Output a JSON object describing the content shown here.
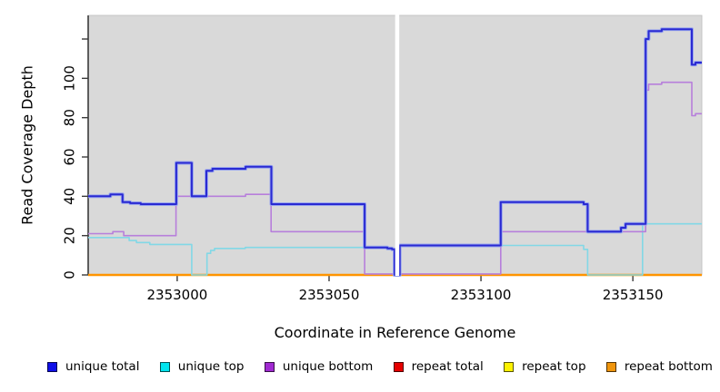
{
  "chart_data": {
    "type": "line",
    "subtype": "step-post",
    "title": "",
    "xlabel": "Coordinate in Reference Genome",
    "ylabel": "Read Coverage Depth",
    "xlim": [
      2352970.7,
      2353172.7
    ],
    "ylim": [
      0,
      132
    ],
    "grid": false,
    "panel_bg": "#d9d9d9",
    "panel_border": "#c4c4c4",
    "axis_color": "#3a3a3a",
    "gap_region": {
      "from": 2353071.75,
      "to": 2353073.1,
      "color": "#ffffff"
    },
    "xticks": [
      {
        "v": 2353000,
        "label": "2353000"
      },
      {
        "v": 2353050,
        "label": "2353050"
      },
      {
        "v": 2353100,
        "label": "2353100"
      },
      {
        "v": 2353150,
        "label": "2353150"
      }
    ],
    "yticks": [
      {
        "v": 0,
        "label": "0"
      },
      {
        "v": 20,
        "label": "20"
      },
      {
        "v": 40,
        "label": "40"
      },
      {
        "v": 60,
        "label": "60"
      },
      {
        "v": 80,
        "label": "80"
      },
      {
        "v": 100,
        "label": "100"
      },
      {
        "v": 120,
        "label": ""
      }
    ],
    "series": [
      {
        "name": "repeat total",
        "color": "#d40000",
        "width": 1.2,
        "points": [
          [
            2352970.7,
            0
          ]
        ]
      },
      {
        "name": "repeat top",
        "color": "#f5e800",
        "width": 1.2,
        "points": [
          [
            2352970.7,
            0
          ]
        ]
      },
      {
        "name": "repeat bottom",
        "color": "#ff9400",
        "width": 2.4,
        "points": [
          [
            2352970.7,
            0
          ]
        ]
      },
      {
        "name": "unique top",
        "color": "#82d8e6",
        "width": 1.6,
        "points": [
          [
            2352970.7,
            19
          ],
          [
            2352984.2,
            17.5
          ],
          [
            2352986.6,
            16.5
          ],
          [
            2352991,
            15.5
          ],
          [
            2353004.8,
            0
          ],
          [
            2353009.8,
            11
          ],
          [
            2353011,
            12.5
          ],
          [
            2353012.3,
            13.5
          ],
          [
            2353022.4,
            14
          ],
          [
            2353069.2,
            13
          ],
          [
            2353071.55,
            0
          ],
          [
            2353073.25,
            15
          ],
          [
            2353133.8,
            13
          ],
          [
            2353135.1,
            0
          ],
          [
            2353153.2,
            26
          ]
        ]
      },
      {
        "name": "unique bottom",
        "color": "#b77fdb",
        "width": 1.6,
        "points": [
          [
            2352970.7,
            21
          ],
          [
            2352978.8,
            22
          ],
          [
            2352982.4,
            20
          ],
          [
            2352999.6,
            40
          ],
          [
            2353022.5,
            41
          ],
          [
            2353030.9,
            22
          ],
          [
            2353061.7,
            0.5
          ],
          [
            2353106.5,
            22
          ],
          [
            2353154.2,
            94
          ],
          [
            2353155.2,
            97
          ],
          [
            2353159.5,
            98
          ],
          [
            2353169.4,
            81
          ],
          [
            2353170.6,
            82
          ]
        ]
      },
      {
        "name": "unique total",
        "color": "#2a2ad2",
        "halo": "#98a4ee",
        "width": 2.0,
        "points": [
          [
            2352970.7,
            40
          ],
          [
            2352978,
            41
          ],
          [
            2352982,
            37
          ],
          [
            2352984.5,
            36.5
          ],
          [
            2352988,
            36
          ],
          [
            2352999.7,
            57
          ],
          [
            2353004.8,
            40
          ],
          [
            2353009.6,
            53
          ],
          [
            2353011.6,
            54
          ],
          [
            2353022.5,
            55
          ],
          [
            2353031,
            36
          ],
          [
            2353061.7,
            14
          ],
          [
            2353069.2,
            13.5
          ],
          [
            2353070.7,
            13
          ],
          [
            2353071.55,
            0
          ],
          [
            2353073.25,
            15
          ],
          [
            2353106.5,
            37
          ],
          [
            2353133.8,
            36
          ],
          [
            2353135.1,
            22
          ],
          [
            2353146.1,
            24
          ],
          [
            2353147.6,
            26
          ],
          [
            2353154.2,
            120
          ],
          [
            2353155.2,
            124
          ],
          [
            2353159.5,
            125
          ],
          [
            2353169.4,
            107
          ],
          [
            2353170.6,
            108
          ]
        ]
      }
    ],
    "legend": [
      {
        "label": "unique total",
        "swatch": "#0f0fe8"
      },
      {
        "label": "unique top",
        "swatch": "#00e4ee"
      },
      {
        "label": "unique bottom",
        "swatch": "#a12ad2"
      },
      {
        "label": "repeat total",
        "swatch": "#e60000"
      },
      {
        "label": "repeat top",
        "swatch": "#fdf200"
      },
      {
        "label": "repeat bottom",
        "swatch": "#f0950c"
      }
    ],
    "legend_position": "bottom"
  }
}
